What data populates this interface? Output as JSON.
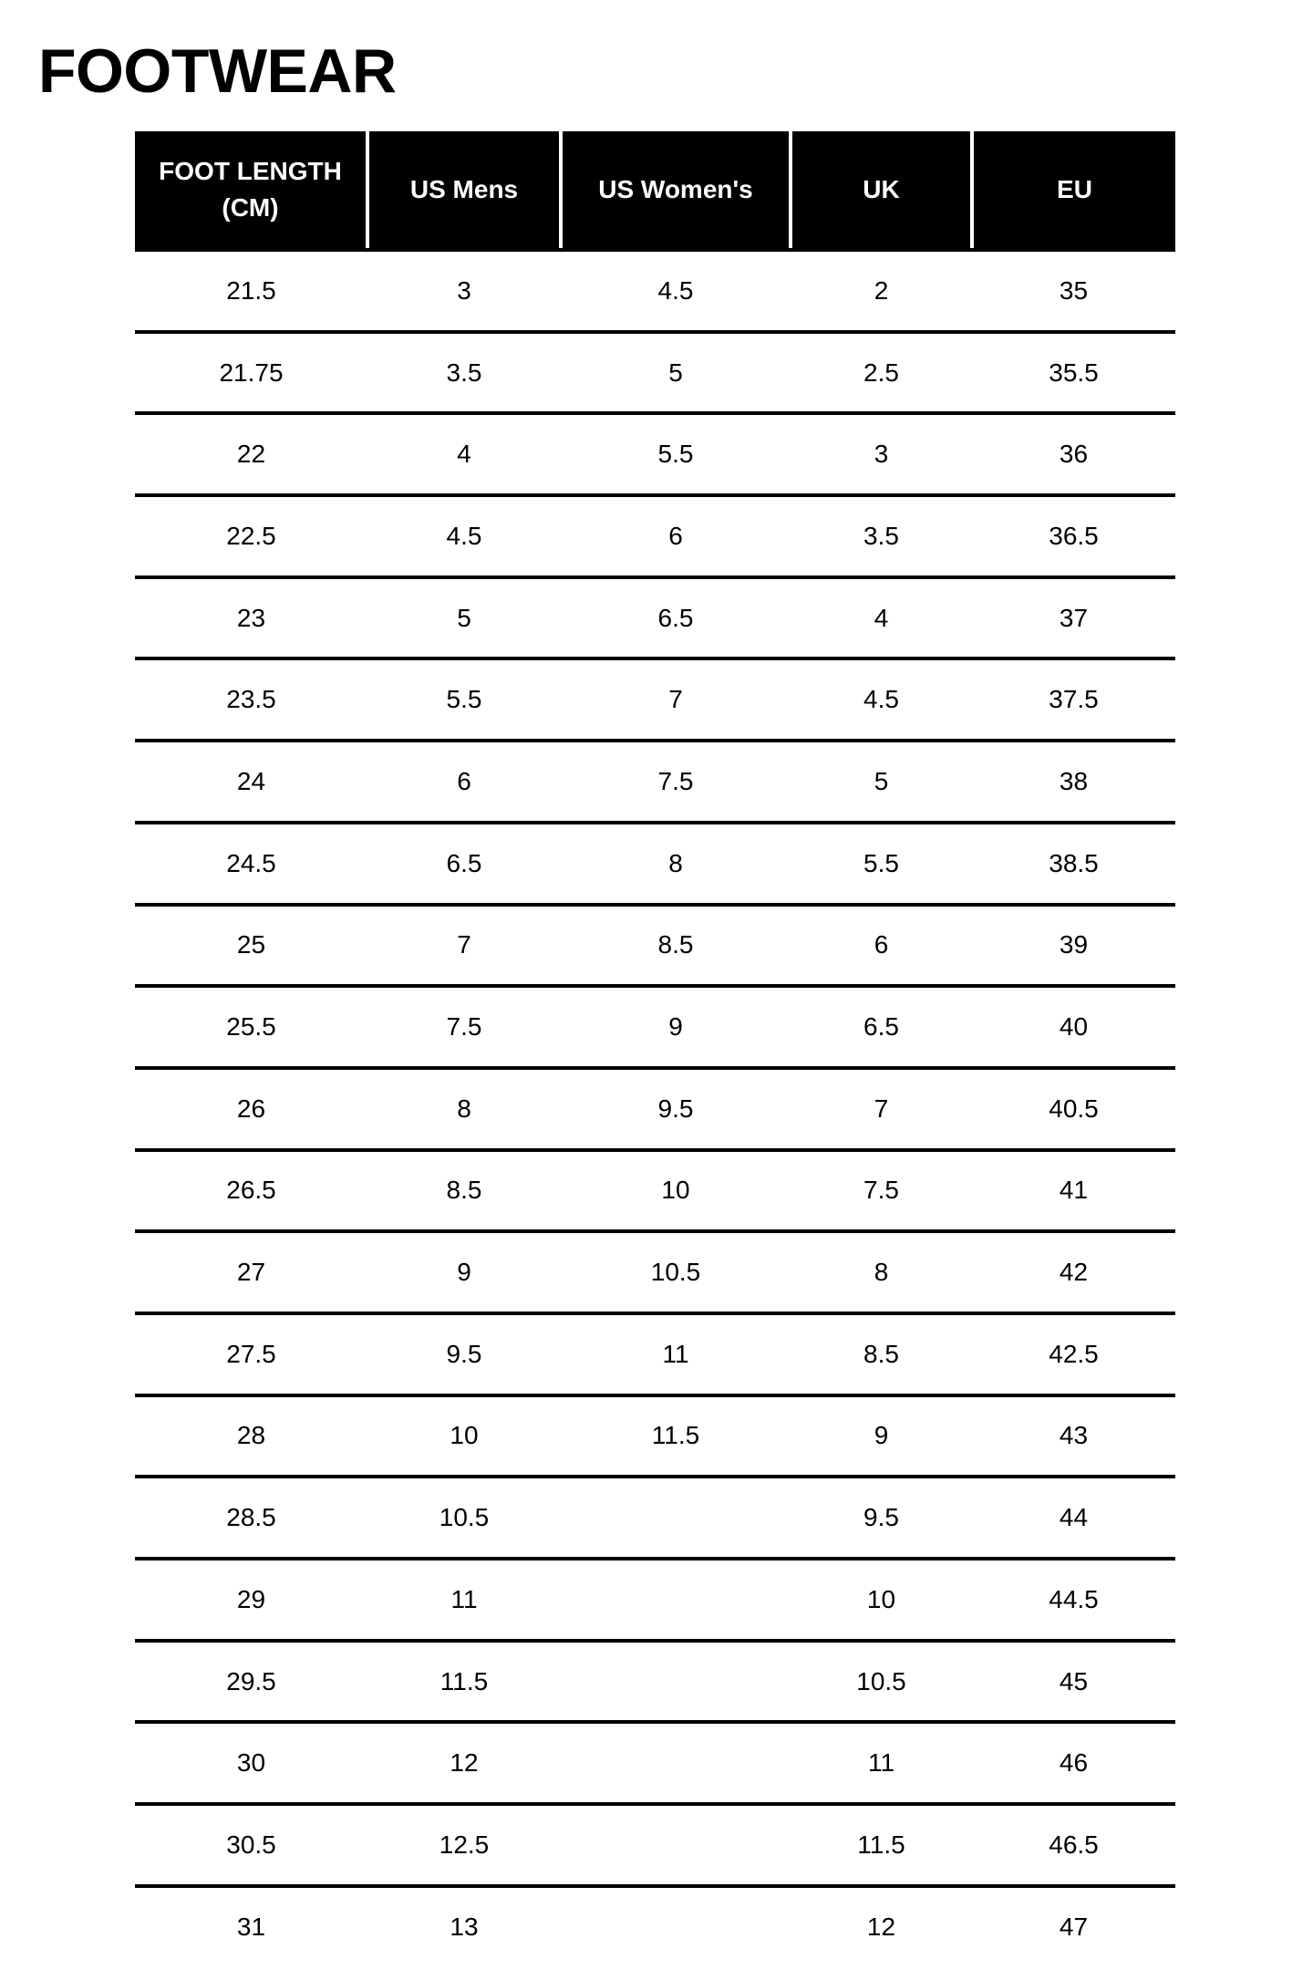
{
  "title": "FOOTWEAR",
  "columns": [
    "FOOT LENGTH (CM)",
    "US Mens",
    "US Women's",
    "UK",
    "EU"
  ],
  "rows": [
    [
      "21.5",
      "3",
      "4.5",
      "2",
      "35"
    ],
    [
      "21.75",
      "3.5",
      "5",
      "2.5",
      "35.5"
    ],
    [
      "22",
      "4",
      "5.5",
      "3",
      "36"
    ],
    [
      "22.5",
      "4.5",
      "6",
      "3.5",
      "36.5"
    ],
    [
      "23",
      "5",
      "6.5",
      "4",
      "37"
    ],
    [
      "23.5",
      "5.5",
      "7",
      "4.5",
      "37.5"
    ],
    [
      "24",
      "6",
      "7.5",
      "5",
      "38"
    ],
    [
      "24.5",
      "6.5",
      "8",
      "5.5",
      "38.5"
    ],
    [
      "25",
      "7",
      "8.5",
      "6",
      "39"
    ],
    [
      "25.5",
      "7.5",
      "9",
      "6.5",
      "40"
    ],
    [
      "26",
      "8",
      "9.5",
      "7",
      "40.5"
    ],
    [
      "26.5",
      "8.5",
      "10",
      "7.5",
      "41"
    ],
    [
      "27",
      "9",
      "10.5",
      "8",
      "42"
    ],
    [
      "27.5",
      "9.5",
      "11",
      "8.5",
      "42.5"
    ],
    [
      "28",
      "10",
      "11.5",
      "9",
      "43"
    ],
    [
      "28.5",
      "10.5",
      "",
      "9.5",
      "44"
    ],
    [
      "29",
      "11",
      "",
      "10",
      "44.5"
    ],
    [
      "29.5",
      "11.5",
      "",
      "10.5",
      "45"
    ],
    [
      "30",
      "12",
      "",
      "11",
      "46"
    ],
    [
      "30.5",
      "12.5",
      "",
      "11.5",
      "46.5"
    ],
    [
      "31",
      "13",
      "",
      "12",
      "47"
    ]
  ]
}
